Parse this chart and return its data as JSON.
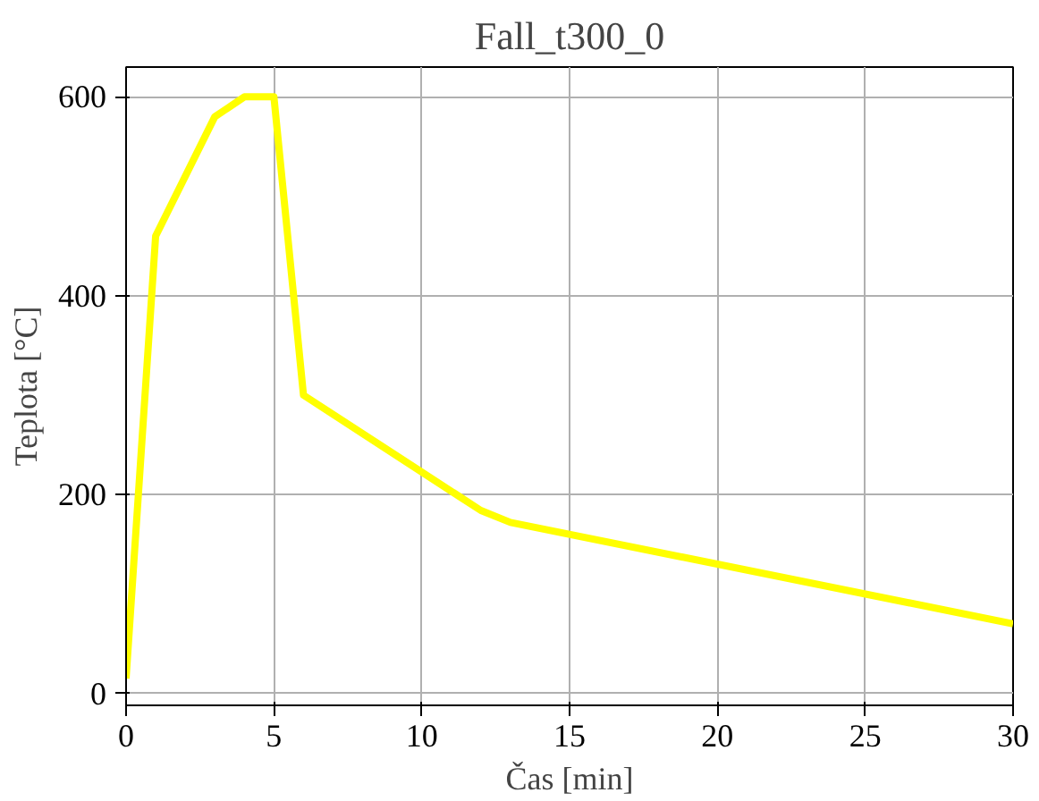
{
  "chart_data": {
    "type": "line",
    "title": "Fall_t300_0",
    "xlabel": "Čas [min]",
    "ylabel": "Teplota [°C]",
    "x": [
      0,
      1,
      3,
      4,
      5,
      6,
      12,
      13,
      30
    ],
    "series": [
      {
        "color": "#ffff00",
        "values": [
          15,
          460,
          580,
          600,
          600,
          300,
          184,
          172,
          70
        ]
      }
    ],
    "xlim": [
      0,
      30
    ],
    "ylim": [
      -12,
      630
    ],
    "xticks": [
      0,
      5,
      10,
      15,
      20,
      25,
      30
    ],
    "yticks": [
      0,
      200,
      400,
      600
    ],
    "grid": true
  }
}
